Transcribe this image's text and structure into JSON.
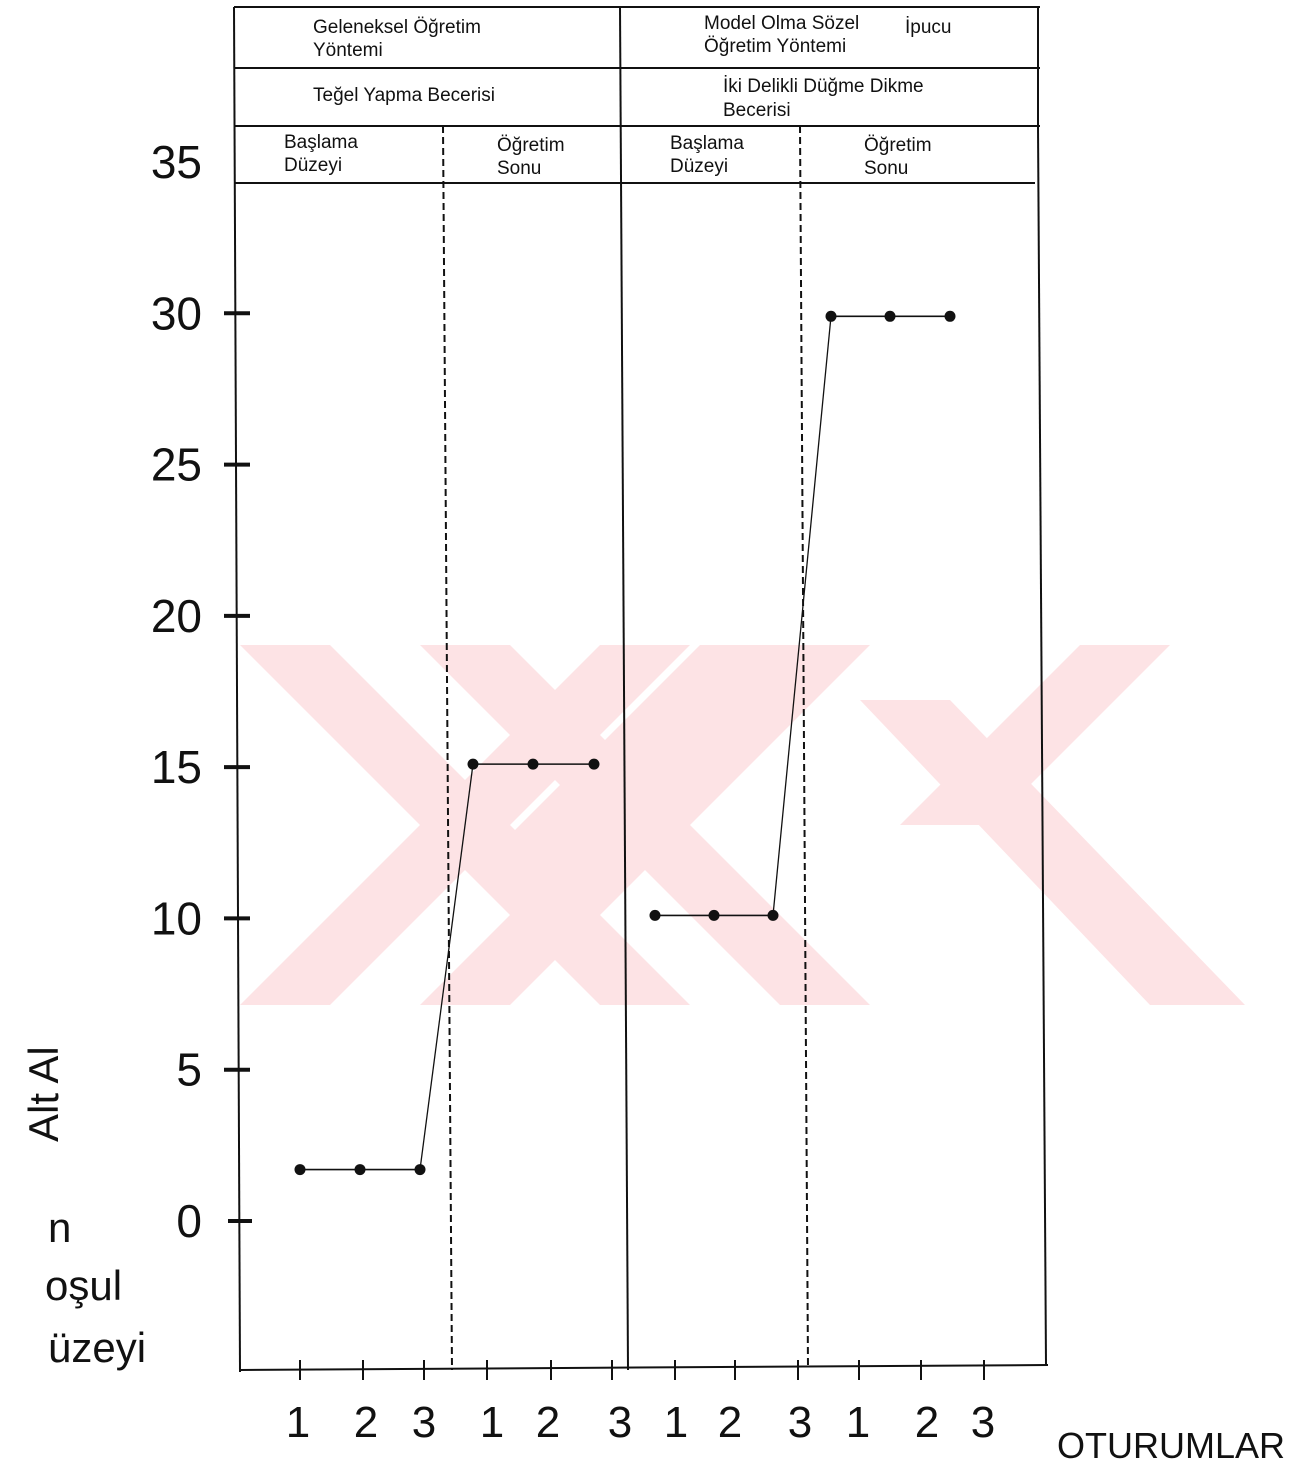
{
  "chart_data": {
    "type": "line",
    "ylim": [
      0,
      35
    ],
    "y_ticks": [
      "35",
      "30",
      "25",
      "20",
      "15",
      "10",
      "5",
      "0"
    ],
    "x_tick_labels": [
      "1",
      "2",
      "3",
      "1",
      "2",
      "3",
      "1",
      "2",
      "3",
      "1",
      "2",
      "3"
    ],
    "xlabel": "OTURUMLAR",
    "ylabel_fragment": "Alt Al",
    "side_label_lines": [
      "n",
      "oşul",
      "üzeyi"
    ],
    "methods": [
      {
        "line1": "Geleneksel Öğretim",
        "line2": "Yöntemi"
      },
      {
        "line1": "Model Olma Sözel",
        "line1b": "İpucu",
        "line2": "Öğretim Yöntemi"
      }
    ],
    "skills": [
      {
        "line1": "Teğel Yapma Becerisi",
        "line2": ""
      },
      {
        "line1": "İki Delikli Düğme Dikme",
        "line2": "Becerisi"
      }
    ],
    "phases": [
      {
        "line1": "Başlama",
        "line2": "Düzeyi"
      },
      {
        "line1": "Öğretim",
        "line2": "Sonu"
      },
      {
        "line1": "Başlama",
        "line2": "Düzeyi"
      },
      {
        "line1": "Öğretim",
        "line2": "Sonu"
      }
    ],
    "series": [
      {
        "skill": "Teğel Yapma Becerisi",
        "phase": "Başlama Düzeyi",
        "x": [
          1,
          2,
          3
        ],
        "values": [
          1.7,
          1.7,
          1.7
        ]
      },
      {
        "skill": "Teğel Yapma Becerisi",
        "phase": "Öğretim Sonu",
        "x": [
          1,
          2,
          3
        ],
        "values": [
          15.1,
          15.1,
          15.1
        ]
      },
      {
        "skill": "İki Delikli Düğme Dikme Becerisi",
        "phase": "Başlama Düzeyi",
        "x": [
          1,
          2,
          3
        ],
        "values": [
          10.1,
          10.1,
          10.1
        ]
      },
      {
        "skill": "İki Delikli Düğme Dikme Becerisi",
        "phase": "Öğretim Sonu",
        "x": [
          1,
          2,
          3
        ],
        "values": [
          29.9,
          29.9,
          29.9
        ]
      }
    ],
    "colors": {
      "line": "#111111",
      "watermark": "#fde3e5"
    }
  }
}
